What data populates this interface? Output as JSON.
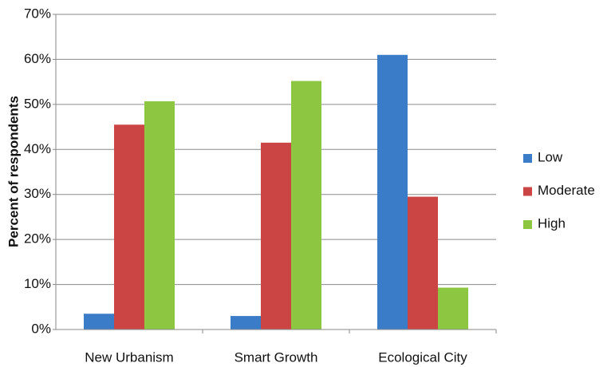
{
  "chart_data": {
    "type": "bar",
    "y_label": "Percent of respondents",
    "categories": [
      "New Urbanism",
      "Smart Growth",
      "Ecological City"
    ],
    "series": [
      {
        "name": "Low",
        "color": "#3b7cc9",
        "values": [
          3.5,
          3,
          61
        ]
      },
      {
        "name": "Moderate",
        "color": "#cc4545",
        "values": [
          45.5,
          41.5,
          29.5
        ]
      },
      {
        "name": "High",
        "color": "#8dc641",
        "values": [
          50.7,
          55.2,
          9.3
        ]
      }
    ],
    "ylim": [
      0,
      70
    ],
    "yticks": [
      {
        "value": 0,
        "label": "0%"
      },
      {
        "value": 10,
        "label": "10%"
      },
      {
        "value": 20,
        "label": "20%"
      },
      {
        "value": 30,
        "label": "30%"
      },
      {
        "value": 40,
        "label": "40%"
      },
      {
        "value": 50,
        "label": "50%"
      },
      {
        "value": 60,
        "label": "60%"
      },
      {
        "value": 70,
        "label": "70%"
      }
    ],
    "grid": true,
    "legend": "right"
  }
}
